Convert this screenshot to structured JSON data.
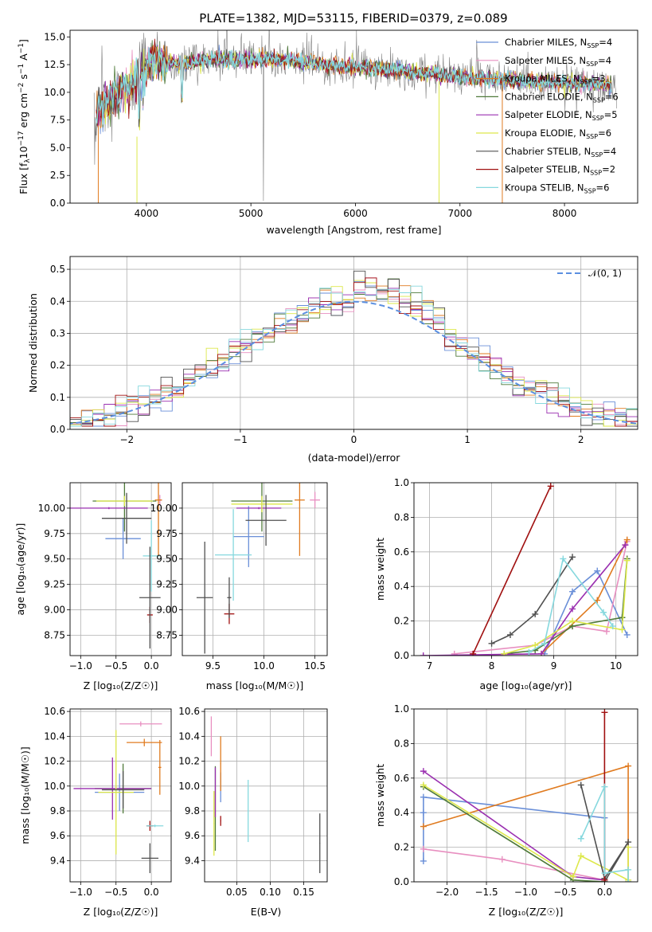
{
  "title": "PLATE=1382, MJD=53115, FIBERID=0379, z=0.089",
  "colors": {
    "chabrier_miles": "#6a8fd8",
    "salpeter_miles": "#e88fc0",
    "kroupa_miles": "#e07b20",
    "chabrier_elodie": "#4f7a3a",
    "salpeter_elodie": "#9a2fb0",
    "kroupa_elodie": "#dde84a",
    "chabrier_stelib": "#505050",
    "salpeter_stelib": "#a01010",
    "kroupa_stelib": "#86d8de",
    "data": "#808080",
    "gaussian": "#5b8fe0"
  },
  "chart_data": [
    {
      "id": "spectrum",
      "type": "line",
      "xlabel": "wavelength [Angstrom, rest frame]",
      "ylabel": "Flux [f_λ 10^-17 erg cm^-2 s^-1 A^-1]",
      "xlim": [
        3270,
        8700
      ],
      "ylim": [
        0,
        15.6
      ],
      "xticks": [
        4000,
        5000,
        6000,
        7000,
        8000
      ],
      "yticks": [
        0.0,
        2.5,
        5.0,
        7.5,
        10.0,
        12.5,
        15.0
      ],
      "xticklabels": [
        "4000",
        "5000",
        "6000",
        "7000",
        "8000"
      ],
      "yticklabels": [
        "0.0",
        "2.5",
        "5.0",
        "7.5",
        "10.0",
        "12.5",
        "15.0"
      ],
      "grid": false,
      "legend_position": "top-right",
      "legend": [
        {
          "label": "Chabrier MILES, N",
          "sub": "SSP",
          "suffix": "=4",
          "color": "#6a8fd8"
        },
        {
          "label": "Salpeter MILES, N",
          "sub": "SSP",
          "suffix": "=4",
          "color": "#e88fc0"
        },
        {
          "label": "Kroupa MILES, N",
          "sub": "SSP",
          "suffix": "=3",
          "color": "#e07b20"
        },
        {
          "label": "Chabrier ELODIE, N",
          "sub": "SSP",
          "suffix": "=6",
          "color": "#4f7a3a"
        },
        {
          "label": "Salpeter ELODIE, N",
          "sub": "SSP",
          "suffix": "=5",
          "color": "#9a2fb0"
        },
        {
          "label": "Kroupa ELODIE, N",
          "sub": "SSP",
          "suffix": "=6",
          "color": "#dde84a"
        },
        {
          "label": "Chabrier STELIB, N",
          "sub": "SSP",
          "suffix": "=4",
          "color": "#505050"
        },
        {
          "label": "Salpeter STELIB, N",
          "sub": "SSP",
          "suffix": "=2",
          "color": "#a01010"
        },
        {
          "label": "Kroupa STELIB, N",
          "sub": "SSP",
          "suffix": "=6",
          "color": "#86d8de"
        }
      ],
      "continuum": {
        "x": [
          3500,
          3600,
          3700,
          3800,
          3900,
          4000,
          4100,
          4200,
          4300,
          4400,
          4500,
          4700,
          4900,
          5100,
          5300,
          5500,
          5700,
          5900,
          6100,
          6300,
          6500,
          6700,
          6900,
          7100,
          7300,
          7500,
          7700,
          7900,
          8100,
          8300,
          8500
        ],
        "y": [
          8.0,
          8.8,
          9.6,
          10.3,
          10.9,
          12.4,
          12.9,
          12.8,
          12.5,
          12.7,
          12.8,
          12.9,
          13.0,
          13.0,
          12.9,
          12.7,
          12.5,
          12.3,
          12.2,
          12.1,
          11.9,
          11.7,
          11.5,
          11.3,
          11.2,
          11.1,
          11.0,
          10.9,
          10.8,
          10.7,
          10.6
        ]
      }
    },
    {
      "id": "residuals",
      "type": "histogram",
      "xlabel": "(data-model)/error",
      "ylabel": "Normed distribution",
      "xlim": [
        -2.5,
        2.5
      ],
      "ylim": [
        0,
        0.54
      ],
      "xticks": [
        -2,
        -1,
        0,
        1,
        2
      ],
      "yticks": [
        0.0,
        0.1,
        0.2,
        0.3,
        0.4,
        0.5
      ],
      "xticklabels": [
        "−2",
        "−1",
        "0",
        "1",
        "2"
      ],
      "yticklabels": [
        "0.0",
        "0.1",
        "0.2",
        "0.3",
        "0.4",
        "0.5"
      ],
      "grid": true,
      "bin_width": 0.1,
      "legend_position": "top-right",
      "legend": [
        {
          "label": "𝒩(0, 1)",
          "color": "#5b8fe0"
        }
      ]
    },
    {
      "id": "age_vs_Z",
      "type": "errorbar",
      "xlabel": "Z [log₁₀(Z/Z☉)]",
      "ylabel": "age  [log₁₀(age/yr)]",
      "xlim": [
        -1.15,
        0.28
      ],
      "ylim": [
        8.55,
        10.25
      ],
      "xticks": [
        -1.0,
        -0.5,
        0.0
      ],
      "yticks": [
        8.75,
        9.0,
        9.25,
        9.5,
        9.75,
        10.0
      ],
      "xticklabels": [
        "−1.0",
        "−0.5",
        "0.0"
      ],
      "yticklabels": [
        "8.75",
        "9.00",
        "9.25",
        "9.50",
        "9.75",
        "10.00"
      ],
      "grid": true,
      "points": [
        {
          "x": -0.4,
          "y": 9.7,
          "xerr": 0.25,
          "yerr": 0.2,
          "color": "#6a8fd8"
        },
        {
          "x": 0.12,
          "y": 10.08,
          "xerr": 0.03,
          "yerr": 0.05,
          "color": "#e88fc0"
        },
        {
          "x": 0.1,
          "y": 10.08,
          "xerr": 0.05,
          "yerr": 0.55,
          "color": "#e07b20"
        },
        {
          "x": -0.38,
          "y": 10.07,
          "xerr": 0.45,
          "yerr": 0.3,
          "color": "#4f7a3a"
        },
        {
          "x": -0.6,
          "y": 10.0,
          "xerr": 0.55,
          "yerr": 0.01,
          "color": "#9a2fb0"
        },
        {
          "x": -0.38,
          "y": 10.07,
          "xerr": 0.4,
          "yerr": 0.05,
          "color": "#dde84a"
        },
        {
          "x": -0.35,
          "y": 9.9,
          "xerr": 0.35,
          "yerr": 0.25,
          "color": "#505050"
        },
        {
          "x": -0.02,
          "y": 8.95,
          "xerr": 0.04,
          "yerr": 0.08,
          "color": "#a01010"
        },
        {
          "x": 0.0,
          "y": 9.53,
          "xerr": 0.12,
          "yerr": 0.35,
          "color": "#86d8de"
        },
        {
          "x": -0.02,
          "y": 9.12,
          "xerr": 0.15,
          "yerr": 0.5,
          "color": "#505050"
        }
      ]
    },
    {
      "id": "age_vs_mass",
      "type": "errorbar",
      "xlabel": "mass [log₁₀(M/M☉)]",
      "ylabel": "",
      "xlim": [
        9.2,
        10.62
      ],
      "ylim": [
        8.55,
        10.25
      ],
      "xticks": [
        9.5,
        10.0,
        10.5
      ],
      "yticks": [
        8.75,
        9.0,
        9.25,
        9.5,
        9.75,
        10.0
      ],
      "xticklabels": [
        "9.5",
        "10.0",
        "10.5"
      ],
      "yticklabels": [
        "8.75",
        "9.00",
        "9.25",
        "9.50",
        "9.75",
        "10.00"
      ],
      "grid": true,
      "points": [
        {
          "x": 9.85,
          "y": 9.72,
          "xerr": 0.15,
          "yerr": 0.3,
          "color": "#6a8fd8"
        },
        {
          "x": 10.5,
          "y": 10.08,
          "xerr": 0.05,
          "yerr": 0.08,
          "color": "#e88fc0"
        },
        {
          "x": 10.35,
          "y": 10.08,
          "xerr": 0.05,
          "yerr": 0.55,
          "color": "#e07b20"
        },
        {
          "x": 9.98,
          "y": 10.07,
          "xerr": 0.3,
          "yerr": 0.3,
          "color": "#4f7a3a"
        },
        {
          "x": 9.95,
          "y": 10.0,
          "xerr": 0.22,
          "yerr": 0.01,
          "color": "#9a2fb0"
        },
        {
          "x": 9.98,
          "y": 10.04,
          "xerr": 0.3,
          "yerr": 0.08,
          "color": "#dde84a"
        },
        {
          "x": 10.02,
          "y": 9.88,
          "xerr": 0.2,
          "yerr": 0.25,
          "color": "#505050"
        },
        {
          "x": 9.66,
          "y": 8.96,
          "xerr": 0.05,
          "yerr": 0.1,
          "color": "#a01010"
        },
        {
          "x": 9.7,
          "y": 9.54,
          "xerr": 0.18,
          "yerr": 0.45,
          "color": "#86d8de"
        },
        {
          "x": 9.42,
          "y": 9.12,
          "xerr": 0.08,
          "yerr": 0.55,
          "color": "#505050"
        },
        {
          "x": 9.66,
          "y": 9.12,
          "xerr": 0.02,
          "yerr": 0.2,
          "color": "#505050"
        }
      ]
    },
    {
      "id": "weight_vs_age",
      "type": "line",
      "xlabel": "age  [log₁₀(age/yr)]",
      "ylabel": "mass weight",
      "xlim": [
        6.75,
        10.35
      ],
      "ylim": [
        0,
        1.0
      ],
      "xticks": [
        7,
        8,
        9,
        10
      ],
      "yticks": [
        0.0,
        0.2,
        0.4,
        0.6,
        0.8,
        1.0
      ],
      "xticklabels": [
        "7",
        "8",
        "9",
        "10"
      ],
      "yticklabels": [
        "0.0",
        "0.2",
        "0.4",
        "0.6",
        "0.8",
        "1.0"
      ],
      "grid": true,
      "series": [
        {
          "color": "#6a8fd8",
          "x": [
            8.85,
            9.3,
            9.7,
            10.18
          ],
          "y": [
            0.01,
            0.37,
            0.49,
            0.12
          ]
        },
        {
          "color": "#e88fc0",
          "x": [
            7.4,
            8.7,
            9.3,
            9.85,
            10.18
          ],
          "y": [
            0.01,
            0.06,
            0.17,
            0.14,
            0.66
          ]
        },
        {
          "color": "#e07b20",
          "x": [
            8.8,
            9.7,
            10.18
          ],
          "y": [
            0.01,
            0.32,
            0.67
          ]
        },
        {
          "color": "#4f7a3a",
          "x": [
            8.2,
            8.7,
            9.3,
            10.1,
            10.18
          ],
          "y": [
            0.01,
            0.03,
            0.17,
            0.22,
            0.56
          ]
        },
        {
          "color": "#9a2fb0",
          "x": [
            6.9,
            8.8,
            9.3,
            10.15
          ],
          "y": [
            0.0,
            0.01,
            0.27,
            0.64
          ]
        },
        {
          "color": "#dde84a",
          "x": [
            8.2,
            8.7,
            9.3,
            10.1,
            10.18
          ],
          "y": [
            0.01,
            0.06,
            0.2,
            0.15,
            0.55
          ]
        },
        {
          "color": "#505050",
          "x": [
            8.0,
            8.3,
            8.7,
            9.3
          ],
          "y": [
            0.07,
            0.12,
            0.24,
            0.57
          ]
        },
        {
          "color": "#a01010",
          "x": [
            7.7,
            8.95
          ],
          "y": [
            0.01,
            0.98
          ]
        },
        {
          "color": "#86d8de",
          "x": [
            8.6,
            8.85,
            9.15,
            9.8,
            9.95
          ],
          "y": [
            0.02,
            0.07,
            0.56,
            0.25,
            0.17
          ]
        }
      ]
    },
    {
      "id": "mass_vs_Z",
      "type": "errorbar",
      "xlabel": "Z [log₁₀(Z/Z☉)]",
      "ylabel": "mass [log₁₀(M/M☉)]",
      "xlim": [
        -1.15,
        0.28
      ],
      "ylim": [
        9.23,
        10.62
      ],
      "xticks": [
        -1.0,
        -0.5,
        0.0
      ],
      "yticks": [
        9.4,
        9.6,
        9.8,
        10.0,
        10.2,
        10.4,
        10.6
      ],
      "xticklabels": [
        "−1.0",
        "−0.5",
        "0.0"
      ],
      "yticklabels": [
        "9.4",
        "9.6",
        "9.8",
        "10.0",
        "10.2",
        "10.4",
        "10.6"
      ],
      "grid": true,
      "points": [
        {
          "x": -0.45,
          "y": 9.95,
          "xerr": 0.35,
          "yerr": 0.15,
          "color": "#6a8fd8"
        },
        {
          "x": -0.15,
          "y": 10.5,
          "xerr": 0.3,
          "yerr": 0.02,
          "color": "#e88fc0"
        },
        {
          "x": -0.1,
          "y": 10.35,
          "xerr": 0.25,
          "yerr": 0.03,
          "color": "#e07b20"
        },
        {
          "x": 0.12,
          "y": 10.15,
          "xerr": 0.02,
          "yerr": 0.22,
          "color": "#e07b20"
        },
        {
          "x": -0.4,
          "y": 9.98,
          "xerr": 0.4,
          "yerr": 0.2,
          "color": "#4f7a3a"
        },
        {
          "x": -0.55,
          "y": 9.98,
          "xerr": 0.55,
          "yerr": 0.25,
          "color": "#9a2fb0"
        },
        {
          "x": -0.5,
          "y": 9.95,
          "xerr": 0.25,
          "yerr": 0.5,
          "color": "#dde84a"
        },
        {
          "x": -0.4,
          "y": 9.97,
          "xerr": 0.3,
          "yerr": 0.15,
          "color": "#505050"
        },
        {
          "x": -0.02,
          "y": 9.68,
          "xerr": 0.05,
          "yerr": 0.04,
          "color": "#a01010"
        },
        {
          "x": 0.05,
          "y": 9.68,
          "xerr": 0.12,
          "yerr": 0.01,
          "color": "#86d8de"
        },
        {
          "x": -0.02,
          "y": 9.42,
          "xerr": 0.12,
          "yerr": 0.12,
          "color": "#505050"
        }
      ]
    },
    {
      "id": "mass_vs_ebv",
      "type": "errorbar",
      "xlabel": "E(B-V)",
      "ylabel": "",
      "xlim": [
        0.002,
        0.185
      ],
      "ylim": [
        9.23,
        10.62
      ],
      "xticks": [
        0.05,
        0.1,
        0.15
      ],
      "yticks": [
        9.4,
        9.6,
        9.8,
        10.0,
        10.2,
        10.4,
        10.6
      ],
      "xticklabels": [
        "0.05",
        "0.10",
        "0.15"
      ],
      "yticklabels": [
        "9.4",
        "9.6",
        "9.8",
        "10.0",
        "10.2",
        "10.4",
        "10.6"
      ],
      "grid": true,
      "points": [
        {
          "x": 0.026,
          "y": 9.99,
          "xerr": 0,
          "yerr": 0.12,
          "color": "#6a8fd8"
        },
        {
          "x": 0.012,
          "y": 10.4,
          "xerr": 0,
          "yerr": 0.16,
          "color": "#e88fc0"
        },
        {
          "x": 0.026,
          "y": 10.18,
          "xerr": 0,
          "yerr": 0.22,
          "color": "#e07b20"
        },
        {
          "x": 0.018,
          "y": 9.82,
          "xerr": 0,
          "yerr": 0.34,
          "color": "#4f7a3a"
        },
        {
          "x": 0.018,
          "y": 9.95,
          "xerr": 0,
          "yerr": 0.2,
          "color": "#9a2fb0"
        },
        {
          "x": 0.016,
          "y": 9.7,
          "xerr": 0,
          "yerr": 0.26,
          "color": "#dde84a"
        },
        {
          "x": 0.026,
          "y": 9.72,
          "xerr": 0,
          "yerr": 0.04,
          "color": "#a01010"
        },
        {
          "x": 0.067,
          "y": 9.8,
          "xerr": 0,
          "yerr": 0.25,
          "color": "#86d8de"
        },
        {
          "x": 0.174,
          "y": 9.54,
          "xerr": 0,
          "yerr": 0.24,
          "color": "#505050"
        }
      ]
    },
    {
      "id": "weight_vs_Z",
      "type": "line",
      "xlabel": "Z [log₁₀(Z/Z☉)]",
      "ylabel": "mass weight",
      "xlim": [
        -2.42,
        0.42
      ],
      "ylim": [
        0,
        1.0
      ],
      "xticks": [
        -2.0,
        -1.5,
        -1.0,
        -0.5,
        0.0
      ],
      "yticks": [
        0.0,
        0.2,
        0.4,
        0.6,
        0.8,
        1.0
      ],
      "xticklabels": [
        "−2.0",
        "−1.5",
        "−1.0",
        "−0.5",
        "0.0"
      ],
      "yticklabels": [
        "0.0",
        "0.2",
        "0.4",
        "0.6",
        "0.8",
        "1.0"
      ],
      "grid": true,
      "series": [
        {
          "color": "#6a8fd8",
          "x": [
            -2.3,
            -2.3,
            -2.3,
            0.0,
            0.0
          ],
          "y": [
            0.12,
            0.4,
            0.49,
            0.37,
            0.01
          ]
        },
        {
          "color": "#e88fc0",
          "x": [
            -2.3,
            -1.3,
            0.0
          ],
          "y": [
            0.19,
            0.13,
            0.01
          ]
        },
        {
          "color": "#e07b20",
          "x": [
            -2.3,
            0.3,
            0.3
          ],
          "y": [
            0.32,
            0.67,
            0.0
          ]
        },
        {
          "color": "#4f7a3a",
          "x": [
            -2.3,
            -0.4,
            0.0
          ],
          "y": [
            0.55,
            0.01,
            0.0
          ]
        },
        {
          "color": "#9a2fb0",
          "x": [
            -2.3,
            -0.4,
            0.0
          ],
          "y": [
            0.64,
            0.03,
            0.01
          ]
        },
        {
          "color": "#dde84a",
          "x": [
            -2.3,
            -0.4,
            -0.3,
            0.3,
            0.3
          ],
          "y": [
            0.56,
            0.03,
            0.15,
            0.01,
            0.2
          ]
        },
        {
          "color": "#505050",
          "x": [
            -0.3,
            0.0,
            0.3,
            0.0
          ],
          "y": [
            0.56,
            0.02,
            0.23,
            0.0
          ]
        },
        {
          "color": "#a01010",
          "x": [
            0.0,
            0.0
          ],
          "y": [
            0.98,
            0.01
          ]
        },
        {
          "color": "#86d8de",
          "x": [
            -0.3,
            0.0,
            0.0,
            0.3,
            0.3
          ],
          "y": [
            0.25,
            0.55,
            0.05,
            0.07,
            0.0
          ]
        }
      ]
    }
  ]
}
